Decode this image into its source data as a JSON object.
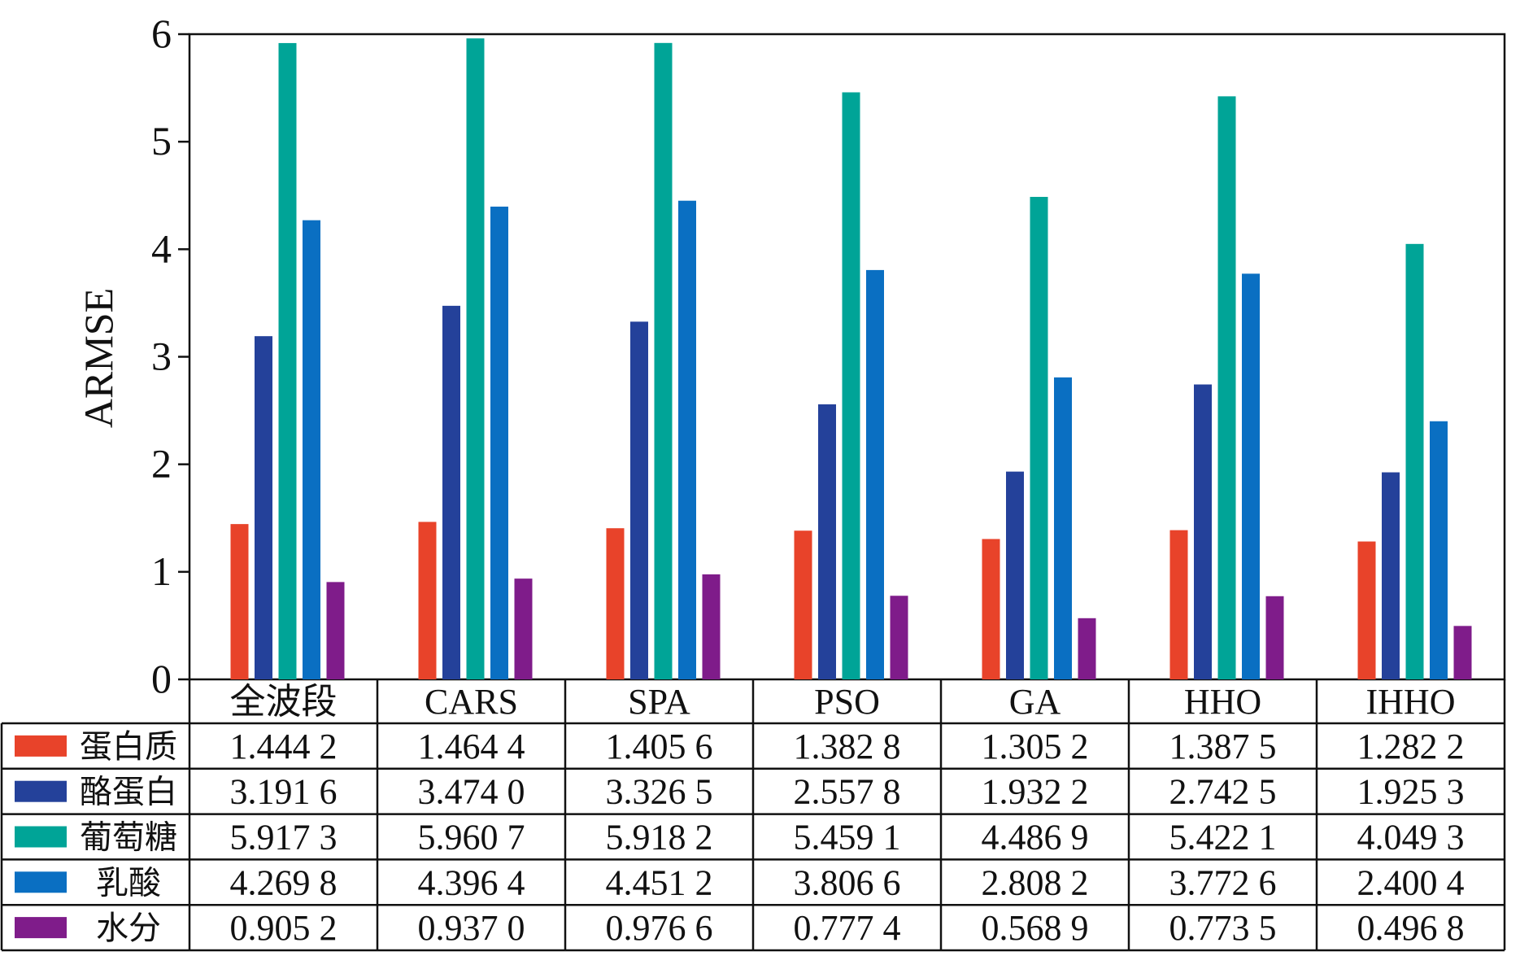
{
  "chart_data": {
    "type": "bar",
    "title": "",
    "xlabel": "",
    "ylabel": "ARMSE",
    "ylim": [
      0,
      6
    ],
    "yticks": [
      "0",
      "1",
      "2",
      "3",
      "4",
      "5",
      "6"
    ],
    "grid": false,
    "legend_placement": "table-left",
    "categories": [
      "全波段",
      "CARS",
      "SPA",
      "PSO",
      "GA",
      "HHO",
      "IHHO"
    ],
    "series": [
      {
        "name": "蛋白质",
        "color": "#E8432A",
        "values": [
          1.4442,
          1.4644,
          1.4056,
          1.3828,
          1.3052,
          1.3875,
          1.2822
        ],
        "labels": [
          "1.444 2",
          "1.464 4",
          "1.405 6",
          "1.382 8",
          "1.305 2",
          "1.387 5",
          "1.282 2"
        ]
      },
      {
        "name": "酪蛋白",
        "color": "#24419A",
        "values": [
          3.1916,
          3.474,
          3.3265,
          2.5578,
          1.9322,
          2.7425,
          1.9253
        ],
        "labels": [
          "3.191 6",
          "3.474 0",
          "3.326 5",
          "2.557 8",
          "1.932 2",
          "2.742 5",
          "1.925 3"
        ]
      },
      {
        "name": "葡萄糖",
        "color": "#00A497",
        "values": [
          5.9173,
          5.9607,
          5.9182,
          5.4591,
          4.4869,
          5.4221,
          4.0493
        ],
        "labels": [
          "5.917 3",
          "5.960 7",
          "5.918 2",
          "5.459 1",
          "4.486 9",
          "5.422 1",
          "4.049 3"
        ]
      },
      {
        "name": "乳酸",
        "color": "#0A6FC2",
        "values": [
          4.2698,
          4.3964,
          4.4512,
          3.8066,
          2.8082,
          3.7726,
          2.4004
        ],
        "labels": [
          "4.269 8",
          "4.396 4",
          "4.451 2",
          "3.806 6",
          "2.808 2",
          "3.772 6",
          "2.400 4"
        ]
      },
      {
        "name": "水分",
        "color": "#7F1C8A",
        "values": [
          0.9052,
          0.937,
          0.9766,
          0.7774,
          0.5689,
          0.7735,
          0.4968
        ],
        "labels": [
          "0.905 2",
          "0.937 0",
          "0.976 6",
          "0.777 4",
          "0.568 9",
          "0.773 5",
          "0.496 8"
        ]
      }
    ]
  }
}
